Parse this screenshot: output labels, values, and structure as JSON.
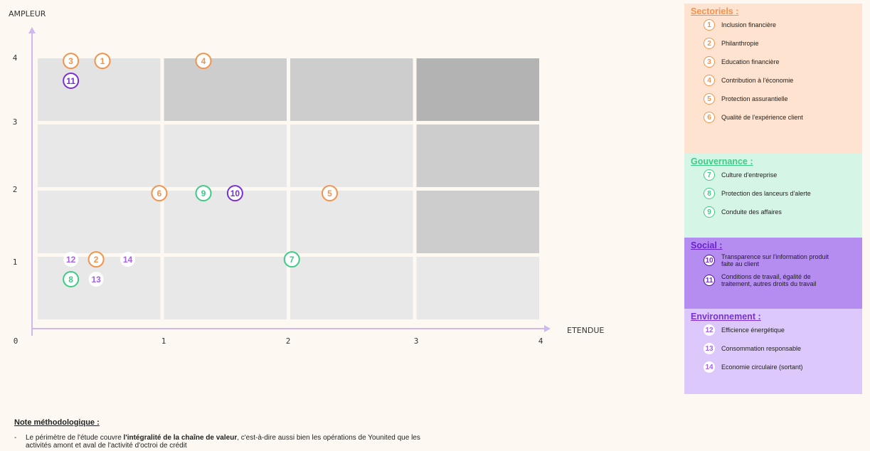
{
  "chart_data": {
    "type": "scatter",
    "ylabel": "AMPLEUR",
    "xlabel": "ETENDUE",
    "xlim": [
      0,
      4
    ],
    "ylim": [
      0,
      4
    ],
    "xticks": [
      "0",
      "1",
      "2",
      "3",
      "4"
    ],
    "yticks": [
      "1",
      "2",
      "3",
      "4"
    ],
    "grid_cells": [
      {
        "x": 0,
        "y": 3,
        "shade": "#e3e3e3"
      },
      {
        "x": 1,
        "y": 3,
        "shade": "#cdcdcd"
      },
      {
        "x": 2,
        "y": 3,
        "shade": "#cdcdcd"
      },
      {
        "x": 3,
        "y": 3,
        "shade": "#b3b3b3"
      },
      {
        "x": 0,
        "y": 2,
        "shade": "#e8e8e8"
      },
      {
        "x": 1,
        "y": 2,
        "shade": "#e8e8e8"
      },
      {
        "x": 2,
        "y": 2,
        "shade": "#e8e8e8"
      },
      {
        "x": 3,
        "y": 2,
        "shade": "#cdcdcd"
      },
      {
        "x": 0,
        "y": 1,
        "shade": "#e8e8e8"
      },
      {
        "x": 1,
        "y": 1,
        "shade": "#e8e8e8"
      },
      {
        "x": 2,
        "y": 1,
        "shade": "#e8e8e8"
      },
      {
        "x": 3,
        "y": 1,
        "shade": "#cdcdcd"
      },
      {
        "x": 0,
        "y": 0,
        "shade": "#e8e8e8"
      },
      {
        "x": 1,
        "y": 0,
        "shade": "#e8e8e8"
      },
      {
        "x": 2,
        "y": 0,
        "shade": "#e8e8e8"
      },
      {
        "x": 3,
        "y": 0,
        "shade": "#e8e8e8"
      }
    ],
    "points": [
      {
        "label": "3",
        "x": 0.15,
        "y": 3.8,
        "category": "sectoriels"
      },
      {
        "label": "1",
        "x": 0.4,
        "y": 3.8,
        "category": "sectoriels"
      },
      {
        "label": "11",
        "x": 0.15,
        "y": 3.5,
        "category": "social"
      },
      {
        "label": "4",
        "x": 1.2,
        "y": 3.8,
        "category": "sectoriels"
      },
      {
        "label": "6",
        "x": 0.85,
        "y": 1.8,
        "category": "sectoriels"
      },
      {
        "label": "9",
        "x": 1.2,
        "y": 1.8,
        "category": "gouvernance"
      },
      {
        "label": "10",
        "x": 1.45,
        "y": 1.8,
        "category": "social"
      },
      {
        "label": "5",
        "x": 2.2,
        "y": 1.8,
        "category": "sectoriels"
      },
      {
        "label": "12",
        "x": 0.15,
        "y": 0.8,
        "category": "environnement"
      },
      {
        "label": "2",
        "x": 0.35,
        "y": 0.8,
        "category": "sectoriels"
      },
      {
        "label": "14",
        "x": 0.6,
        "y": 0.8,
        "category": "environnement"
      },
      {
        "label": "7",
        "x": 1.9,
        "y": 0.8,
        "category": "gouvernance"
      },
      {
        "label": "8",
        "x": 0.15,
        "y": 0.5,
        "category": "gouvernance"
      },
      {
        "label": "13",
        "x": 0.35,
        "y": 0.5,
        "category": "environnement"
      }
    ]
  },
  "colors": {
    "sectoriels": "#f5924a",
    "gouvernance": "#3ecb86",
    "social": "#7a2fd6",
    "environnement": "#a463ec",
    "axis": "#cdb8f2"
  },
  "legend": {
    "sectoriels": {
      "title": "Sectoriels :",
      "items": [
        {
          "num": "1",
          "label": "Inclusion financière"
        },
        {
          "num": "2",
          "label": "Philanthropie"
        },
        {
          "num": "3",
          "label": "Education financière"
        },
        {
          "num": "4",
          "label": "Contribution à l'économie"
        },
        {
          "num": "5",
          "label": "Protection assurantielle"
        },
        {
          "num": "6",
          "label": "Qualité de l'expérience client"
        }
      ]
    },
    "gouvernance": {
      "title": "Gouvernance :",
      "items": [
        {
          "num": "7",
          "label": "Culture d'entreprise"
        },
        {
          "num": "8",
          "label": "Protection des lanceurs d'alerte"
        },
        {
          "num": "9",
          "label": "Conduite des affaires"
        }
      ]
    },
    "social": {
      "title": "Social :",
      "items": [
        {
          "num": "10",
          "label": "Transparence sur l'information produit faite au client"
        },
        {
          "num": "11",
          "label": "Conditions de travail, égalité de traitement, autres droits du travail"
        }
      ]
    },
    "environnement": {
      "title": "Environnement :",
      "items": [
        {
          "num": "12",
          "label": "Efficience énergétique"
        },
        {
          "num": "13",
          "label": "Consommation responsable"
        },
        {
          "num": "14",
          "label": "Economie circulaire (sortant)"
        }
      ]
    }
  },
  "note": {
    "title": "Note méthodologique :",
    "dash": "-",
    "text_before": "Le périmètre de l'étude couvre ",
    "text_bold": "l'intégralité de la chaîne de valeur",
    "text_after": ", c'est-à-dire aussi bien les opérations de Younited que les",
    "line2": "activités amont et aval de l'activité d'octroi de crédit"
  }
}
